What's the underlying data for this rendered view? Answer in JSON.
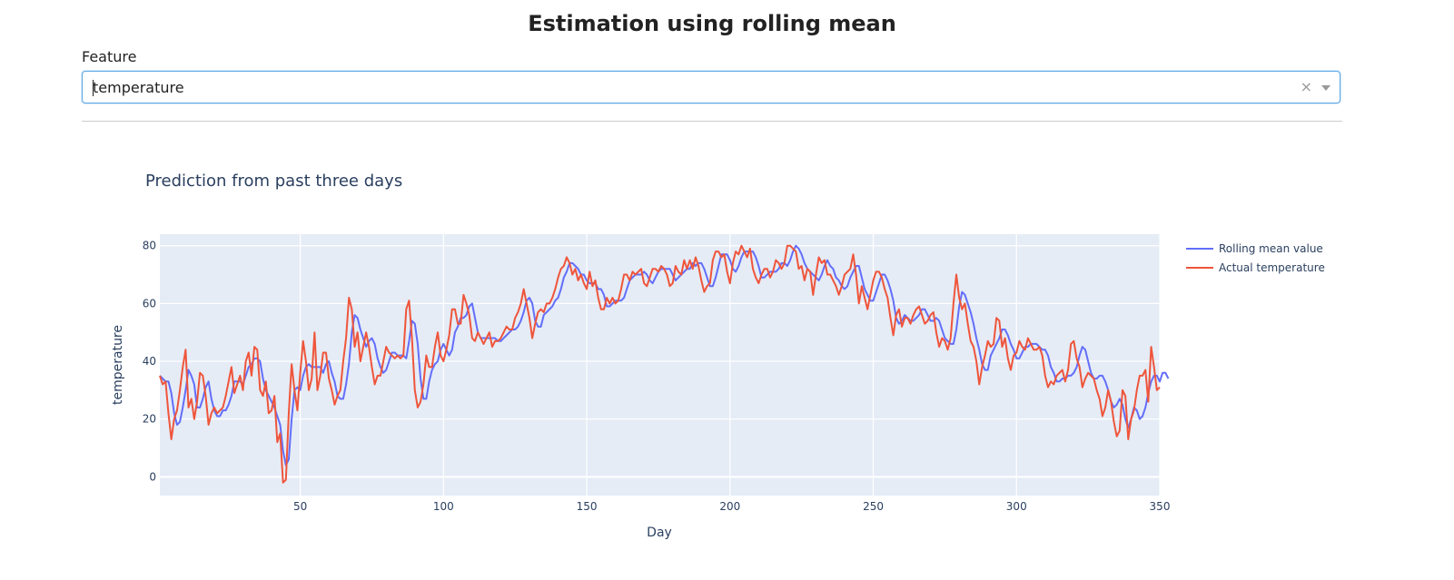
{
  "page": {
    "title": "Estimation using rolling mean"
  },
  "feature_selector": {
    "label": "Feature",
    "value": "temperature",
    "clear_symbol": "×"
  },
  "colors": {
    "rolling": "#636efa",
    "actual": "#ef553b",
    "plot_bg": "#e5ecf6"
  },
  "chart_data": {
    "type": "line",
    "title": "Prediction from past three days",
    "xlabel": "Day",
    "ylabel": "temperature",
    "xlim": [
      1,
      350
    ],
    "ylim": [
      -6.5,
      84
    ],
    "x_ticks": [
      50,
      100,
      150,
      200,
      250,
      300,
      350
    ],
    "y_ticks": [
      0,
      20,
      40,
      60,
      80
    ],
    "grid": true,
    "legend_position": "top-right",
    "x": "days 1 through 350",
    "series": [
      {
        "name": "Actual temperature",
        "values": [
          35,
          32,
          33,
          22,
          13,
          20,
          23,
          30,
          38,
          44,
          24,
          27,
          20,
          26,
          36,
          35,
          28,
          18,
          22,
          24,
          22,
          23,
          24,
          28,
          33,
          38,
          29,
          32,
          35,
          30,
          40,
          43,
          35,
          45,
          44,
          30,
          28,
          33,
          22,
          23,
          28,
          12,
          15,
          -2,
          -1,
          22,
          39,
          30,
          23,
          36,
          47,
          40,
          30,
          34,
          50,
          30,
          35,
          43,
          43,
          34,
          30,
          25,
          28,
          30,
          40,
          48,
          62,
          58,
          45,
          50,
          40,
          45,
          50,
          45,
          38,
          32,
          35,
          35,
          40,
          45,
          43,
          42,
          41,
          42,
          41,
          42,
          58,
          61,
          48,
          30,
          24,
          26,
          32,
          42,
          38,
          38,
          45,
          50,
          42,
          40,
          44,
          49,
          58,
          58,
          53,
          53,
          63,
          60,
          56,
          48,
          47,
          50,
          48,
          46,
          48,
          50,
          45,
          47,
          47,
          48,
          50,
          52,
          51,
          51,
          55,
          57,
          60,
          65,
          60,
          55,
          48,
          53,
          57,
          58,
          57,
          60,
          60,
          62,
          65,
          69,
          72,
          73,
          76,
          74,
          70,
          72,
          68,
          70,
          67,
          65,
          71,
          66,
          68,
          62,
          58,
          58,
          62,
          60,
          62,
          60,
          61,
          65,
          70,
          70,
          68,
          71,
          70,
          71,
          72,
          67,
          66,
          69,
          72,
          72,
          71,
          73,
          72,
          70,
          66,
          67,
          73,
          71,
          70,
          75,
          72,
          75,
          72,
          76,
          73,
          68,
          64,
          66,
          67,
          75,
          78,
          78,
          76,
          77,
          71,
          67,
          74,
          78,
          77,
          80,
          78,
          76,
          79,
          72,
          69,
          67,
          70,
          72,
          72,
          69,
          71,
          75,
          74,
          72,
          74,
          80,
          80,
          79,
          78,
          72,
          73,
          68,
          72,
          71,
          63,
          70,
          76,
          74,
          75,
          70,
          70,
          68,
          66,
          63,
          66,
          70,
          71,
          72,
          77,
          70,
          60,
          66,
          62,
          58,
          63,
          68,
          71,
          71,
          69,
          65,
          62,
          55,
          49,
          56,
          58,
          52,
          55,
          55,
          53,
          56,
          58,
          59,
          56,
          53,
          54,
          56,
          57,
          50,
          45,
          48,
          47,
          44,
          48,
          60,
          70,
          62,
          58,
          60,
          53,
          47,
          45,
          40,
          32,
          38,
          42,
          47,
          45,
          46,
          55,
          54,
          45,
          48,
          41,
          37,
          42,
          43,
          47,
          45,
          44,
          48,
          46,
          44,
          44,
          45,
          42,
          35,
          31,
          33,
          32,
          35,
          36,
          37,
          33,
          37,
          46,
          47,
          41,
          38,
          31,
          34,
          36,
          35,
          34,
          30,
          27,
          21,
          24,
          30,
          26,
          19,
          14,
          16,
          30,
          28,
          13,
          20,
          23,
          30,
          35,
          35,
          37,
          26,
          45,
          38,
          30,
          31
        ]
      },
      {
        "name": "Rolling mean value",
        "values": [
          35,
          34,
          33,
          33,
          29,
          22,
          18,
          19,
          24,
          30,
          37,
          35,
          32,
          24,
          24,
          27,
          31,
          33,
          27,
          23,
          21,
          21,
          23,
          23,
          25,
          28,
          33,
          33,
          33,
          32,
          35,
          38,
          39,
          41,
          41,
          40,
          34,
          30,
          28,
          26,
          24,
          21,
          18,
          9,
          4,
          6,
          20,
          30,
          31,
          30,
          35,
          38,
          39,
          38,
          38,
          38,
          38,
          36,
          39,
          40,
          36,
          33,
          28,
          27,
          27,
          32,
          39,
          50,
          56,
          55,
          51,
          48,
          45,
          47,
          48,
          46,
          41,
          38,
          36,
          37,
          40,
          43,
          43,
          42,
          42,
          42,
          41,
          47,
          54,
          53,
          46,
          34,
          27,
          27,
          33,
          37,
          39,
          40,
          44,
          46,
          44,
          42,
          44,
          50,
          52,
          55,
          55,
          56,
          59,
          60,
          55,
          50,
          48,
          48,
          48,
          48,
          48,
          48,
          47,
          47,
          48,
          49,
          50,
          51,
          51,
          52,
          54,
          57,
          61,
          62,
          60,
          54,
          52,
          52,
          56,
          57,
          58,
          59,
          61,
          62,
          65,
          69,
          71,
          74,
          74,
          73,
          72,
          70,
          70,
          68,
          67,
          67,
          67,
          65,
          65,
          63,
          59,
          59,
          60,
          61,
          61,
          61,
          62,
          65,
          68,
          69,
          70,
          70,
          70,
          71,
          70,
          68,
          67,
          69,
          71,
          72,
          72,
          72,
          72,
          70,
          68,
          69,
          70,
          71,
          72,
          72,
          74,
          73,
          74,
          74,
          72,
          69,
          66,
          66,
          69,
          73,
          77,
          77,
          77,
          75,
          72,
          71,
          73,
          76,
          78,
          78,
          78,
          78,
          76,
          73,
          69,
          69,
          70,
          71,
          71,
          71,
          72,
          74,
          74,
          73,
          75,
          78,
          80,
          79,
          77,
          74,
          72,
          71,
          70,
          69,
          68,
          70,
          73,
          75,
          73,
          72,
          69,
          68,
          66,
          65,
          66,
          69,
          71,
          73,
          73,
          69,
          65,
          63,
          61,
          61,
          64,
          67,
          70,
          70,
          68,
          65,
          61,
          55,
          53,
          54,
          56,
          55,
          54,
          54,
          55,
          56,
          58,
          58,
          56,
          54,
          54,
          55,
          54,
          51,
          48,
          47,
          46,
          46,
          51,
          59,
          64,
          63,
          60,
          57,
          53,
          48,
          44,
          39,
          37,
          37,
          42,
          44,
          46,
          48,
          51,
          51,
          49,
          46,
          44,
          41,
          41,
          43,
          45,
          45,
          46,
          46,
          46,
          45,
          44,
          44,
          42,
          38,
          36,
          33,
          33,
          34,
          34,
          35,
          35,
          36,
          38,
          42,
          45,
          44,
          40,
          36,
          34,
          34,
          35,
          35,
          33,
          30,
          26,
          24,
          25,
          27,
          25,
          20,
          17,
          20,
          24,
          23,
          20,
          21,
          24,
          29,
          33,
          35,
          35,
          33,
          36,
          36,
          34
        ]
      }
    ]
  }
}
